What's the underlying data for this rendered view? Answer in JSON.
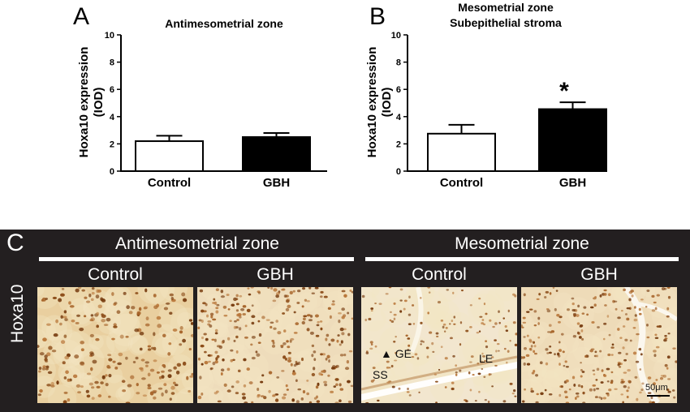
{
  "panels": {
    "a_letter": "A",
    "b_letter": "B",
    "c_letter": "C",
    "a_title": "Antimesometrial zone",
    "b_title_line1": "Mesometrial zone",
    "b_title_line2": "Subepithelial stroma",
    "ylabel_line1": "Hoxa10 expression",
    "ylabel_line2": "(IOD)",
    "significance_mark": "*"
  },
  "chart_data": [
    {
      "type": "bar",
      "title": "Antimesometrial zone",
      "categories": [
        "Control",
        "GBH"
      ],
      "values": [
        2.2,
        2.5
      ],
      "errors": [
        0.4,
        0.3
      ],
      "ylabel": "Hoxa10 expression (IOD)",
      "ylim": [
        0,
        10
      ],
      "yticks": [
        0,
        2,
        4,
        6,
        8,
        10
      ],
      "bar_fills": [
        "#ffffff",
        "#000000"
      ]
    },
    {
      "type": "bar",
      "title": "Mesometrial zone Subepithelial stroma",
      "categories": [
        "Control",
        "GBH"
      ],
      "values": [
        2.75,
        4.55
      ],
      "errors": [
        0.65,
        0.5
      ],
      "ylabel": "Hoxa10 expression (IOD)",
      "ylim": [
        0,
        10
      ],
      "yticks": [
        0,
        2,
        4,
        6,
        8,
        10
      ],
      "bar_fills": [
        "#ffffff",
        "#000000"
      ],
      "significant": [
        false,
        true
      ]
    }
  ],
  "micrographs": {
    "zone_left": "Antimesometrial zone",
    "zone_right": "Mesometrial zone",
    "columns": [
      "Control",
      "GBH",
      "Control",
      "GBH"
    ],
    "row_label": "Hoxa10",
    "labels": {
      "ge": "GE",
      "ss": "SS",
      "le": "LE",
      "scale": "50μm"
    },
    "colors": {
      "background": "#231f20",
      "tissue": "#e8d2a8",
      "nuclei": "#9a5a22"
    }
  }
}
